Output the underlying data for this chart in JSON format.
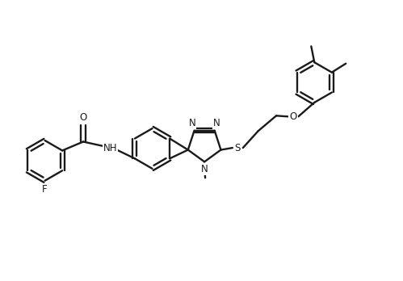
{
  "bg": "#ffffff",
  "lc": "#1a1a1a",
  "lw": 1.7,
  "fs": 8.5,
  "figsize": [
    4.99,
    3.48
  ],
  "dpi": 100,
  "xlim": [
    0,
    10
  ],
  "ylim": [
    0,
    7
  ]
}
